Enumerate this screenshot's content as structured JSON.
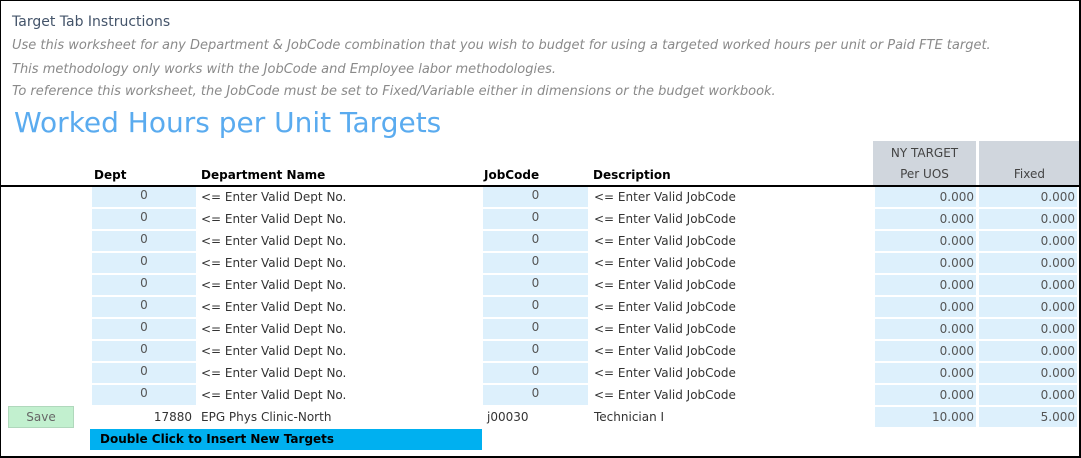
{
  "instructions": {
    "title": "Target Tab Instructions",
    "lines": [
      "Use this worksheet for any Department & JobCode combination that you wish to budget for using a targeted worked hours per unit or Paid FTE target.",
      "This methodology only works with the JobCode and Employee labor methodologies.",
      "To reference this worksheet, the JobCode must be set to Fixed/Variable either in dimensions or the budget workbook."
    ]
  },
  "page_title": "Worked Hours per Unit Targets",
  "columns": {
    "dept": "Dept",
    "dept_name": "Department Name",
    "jobcode": "JobCode",
    "description": "Description",
    "ny_target_top": "NY TARGET",
    "ny_target_bottom": "Per UOS",
    "fixed": "Fixed"
  },
  "input_rows": [
    {
      "dept": "0",
      "dept_name": "<= Enter Valid Dept No.",
      "jobcode": "0",
      "description": "<= Enter Valid JobCode",
      "per_uos": "0.000",
      "fixed": "0.000"
    },
    {
      "dept": "0",
      "dept_name": "<= Enter Valid Dept No.",
      "jobcode": "0",
      "description": "<= Enter Valid JobCode",
      "per_uos": "0.000",
      "fixed": "0.000"
    },
    {
      "dept": "0",
      "dept_name": "<= Enter Valid Dept No.",
      "jobcode": "0",
      "description": "<= Enter Valid JobCode",
      "per_uos": "0.000",
      "fixed": "0.000"
    },
    {
      "dept": "0",
      "dept_name": "<= Enter Valid Dept No.",
      "jobcode": "0",
      "description": "<= Enter Valid JobCode",
      "per_uos": "0.000",
      "fixed": "0.000"
    },
    {
      "dept": "0",
      "dept_name": "<= Enter Valid Dept No.",
      "jobcode": "0",
      "description": "<= Enter Valid JobCode",
      "per_uos": "0.000",
      "fixed": "0.000"
    },
    {
      "dept": "0",
      "dept_name": "<= Enter Valid Dept No.",
      "jobcode": "0",
      "description": "<= Enter Valid JobCode",
      "per_uos": "0.000",
      "fixed": "0.000"
    },
    {
      "dept": "0",
      "dept_name": "<= Enter Valid Dept No.",
      "jobcode": "0",
      "description": "<= Enter Valid JobCode",
      "per_uos": "0.000",
      "fixed": "0.000"
    },
    {
      "dept": "0",
      "dept_name": "<= Enter Valid Dept No.",
      "jobcode": "0",
      "description": "<= Enter Valid JobCode",
      "per_uos": "0.000",
      "fixed": "0.000"
    },
    {
      "dept": "0",
      "dept_name": "<= Enter Valid Dept No.",
      "jobcode": "0",
      "description": "<= Enter Valid JobCode",
      "per_uos": "0.000",
      "fixed": "0.000"
    },
    {
      "dept": "0",
      "dept_name": "<= Enter Valid Dept No.",
      "jobcode": "0",
      "description": "<= Enter Valid JobCode",
      "per_uos": "0.000",
      "fixed": "0.000"
    }
  ],
  "saved_row": {
    "dept": "17880",
    "dept_name": "EPG Phys Clinic-North",
    "jobcode": "j00030",
    "description": "Technician I",
    "per_uos": "10.000",
    "fixed": "5.000"
  },
  "buttons": {
    "save": "Save",
    "insert": "Double Click to Insert New Targets"
  },
  "colors": {
    "title": "#5aabef",
    "input_fill": "#ddf0fc",
    "save": "#c2f0cf",
    "insert": "#00b0f0",
    "header_fill": "#d0d6dd"
  }
}
